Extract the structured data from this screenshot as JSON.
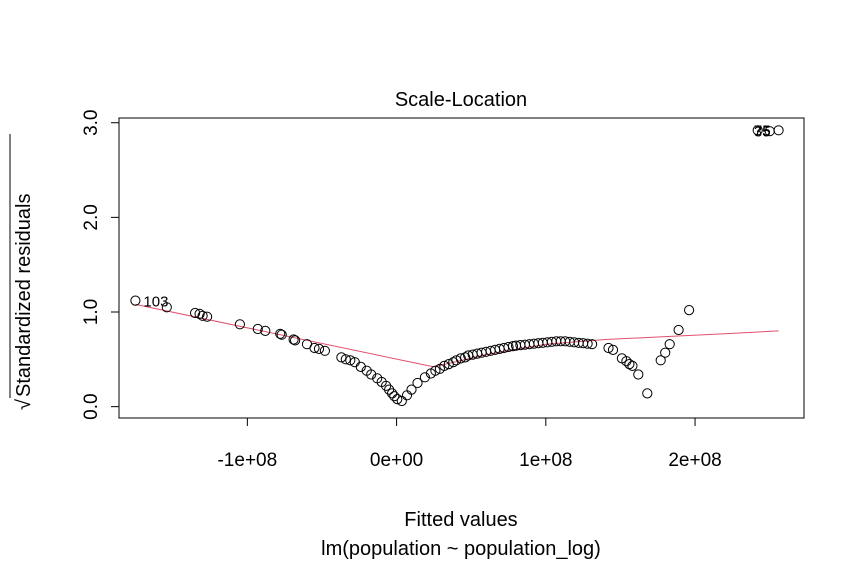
{
  "chart_data": {
    "type": "scatter",
    "title": "Scale-Location",
    "xlabel": "Fitted values",
    "subtitle": "lm(population ~ population_log)",
    "ylabel_radical": "√",
    "ylabel": "Standardized residuals",
    "xlim": [
      -186000000,
      273000000
    ],
    "ylim": [
      -0.12,
      3.05
    ],
    "x_ticks": [
      {
        "value": -100000000,
        "label": "-1e+08"
      },
      {
        "value": 0,
        "label": "0e+00"
      },
      {
        "value": 100000000,
        "label": "1e+08"
      },
      {
        "value": 200000000,
        "label": "2e+08"
      }
    ],
    "y_ticks": [
      {
        "value": 0.0,
        "label": "0.0"
      },
      {
        "value": 1.0,
        "label": "1.0"
      },
      {
        "value": 2.0,
        "label": "2.0"
      },
      {
        "value": 3.0,
        "label": "3.0"
      }
    ],
    "point_labels": [
      {
        "x": -175000000,
        "y": 1.12,
        "text": "103"
      },
      {
        "x": 256000000,
        "y": 2.92,
        "text": "35"
      },
      {
        "x": 256000000,
        "y": 2.93,
        "text": "75"
      }
    ],
    "points": [
      [
        -175000000,
        1.12
      ],
      [
        -154000000,
        1.05
      ],
      [
        -135000000,
        0.99
      ],
      [
        -132000000,
        0.98
      ],
      [
        -130000000,
        0.96
      ],
      [
        -127000000,
        0.95
      ],
      [
        -105000000,
        0.87
      ],
      [
        -93000000,
        0.82
      ],
      [
        -88000000,
        0.8
      ],
      [
        -78000000,
        0.77
      ],
      [
        -77000000,
        0.76
      ],
      [
        -69000000,
        0.71
      ],
      [
        -68000000,
        0.7
      ],
      [
        -60000000,
        0.66
      ],
      [
        -55000000,
        0.62
      ],
      [
        -52000000,
        0.61
      ],
      [
        -48000000,
        0.59
      ],
      [
        -37000000,
        0.52
      ],
      [
        -34000000,
        0.5
      ],
      [
        -31000000,
        0.49
      ],
      [
        -28000000,
        0.47
      ],
      [
        -24000000,
        0.42
      ],
      [
        -20000000,
        0.38
      ],
      [
        -17000000,
        0.34
      ],
      [
        -13000000,
        0.3
      ],
      [
        -10000000,
        0.26
      ],
      [
        -7000000,
        0.22
      ],
      [
        -5000000,
        0.18
      ],
      [
        -3000000,
        0.14
      ],
      [
        -1500000,
        0.11
      ],
      [
        500000,
        0.08
      ],
      [
        3500000,
        0.06
      ],
      [
        7000000,
        0.12
      ],
      [
        10000000,
        0.18
      ],
      [
        14000000,
        0.25
      ],
      [
        19000000,
        0.31
      ],
      [
        23000000,
        0.35
      ],
      [
        26000000,
        0.38
      ],
      [
        29000000,
        0.4
      ],
      [
        32000000,
        0.43
      ],
      [
        35000000,
        0.45
      ],
      [
        38000000,
        0.47
      ],
      [
        40000000,
        0.49
      ],
      [
        43000000,
        0.51
      ],
      [
        46000000,
        0.52
      ],
      [
        48000000,
        0.54
      ],
      [
        51000000,
        0.55
      ],
      [
        54000000,
        0.56
      ],
      [
        57000000,
        0.57
      ],
      [
        60000000,
        0.58
      ],
      [
        63000000,
        0.59
      ],
      [
        66000000,
        0.6
      ],
      [
        69000000,
        0.61
      ],
      [
        72000000,
        0.62
      ],
      [
        75000000,
        0.63
      ],
      [
        78000000,
        0.64
      ],
      [
        80000000,
        0.645
      ],
      [
        83000000,
        0.65
      ],
      [
        86000000,
        0.655
      ],
      [
        89000000,
        0.66
      ],
      [
        92000000,
        0.665
      ],
      [
        95000000,
        0.67
      ],
      [
        98000000,
        0.675
      ],
      [
        101000000,
        0.68
      ],
      [
        104000000,
        0.685
      ],
      [
        107000000,
        0.69
      ],
      [
        110000000,
        0.69
      ],
      [
        113000000,
        0.69
      ],
      [
        116000000,
        0.685
      ],
      [
        119000000,
        0.68
      ],
      [
        122000000,
        0.675
      ],
      [
        125000000,
        0.67
      ],
      [
        128000000,
        0.665
      ],
      [
        131000000,
        0.66
      ],
      [
        142000000,
        0.62
      ],
      [
        145000000,
        0.6
      ],
      [
        151000000,
        0.51
      ],
      [
        154000000,
        0.48
      ],
      [
        156000000,
        0.45
      ],
      [
        158000000,
        0.43
      ],
      [
        162000000,
        0.34
      ],
      [
        168000000,
        0.14
      ],
      [
        177000000,
        0.49
      ],
      [
        180000000,
        0.57
      ],
      [
        183000000,
        0.66
      ],
      [
        189000000,
        0.81
      ],
      [
        196000000,
        1.02
      ],
      [
        242000000,
        2.92
      ],
      [
        250000000,
        2.91
      ],
      [
        256000000,
        2.92
      ]
    ],
    "smoother": [
      [
        -175000000,
        1.08
      ],
      [
        25000000,
        0.42
      ],
      [
        60000000,
        0.55
      ],
      [
        100000000,
        0.66
      ],
      [
        140000000,
        0.71
      ],
      [
        180000000,
        0.74
      ],
      [
        220000000,
        0.77
      ],
      [
        256000000,
        0.8
      ]
    ],
    "colors": {
      "points": "#000000",
      "smoother": "#e0506b",
      "axes": "#000000"
    }
  }
}
